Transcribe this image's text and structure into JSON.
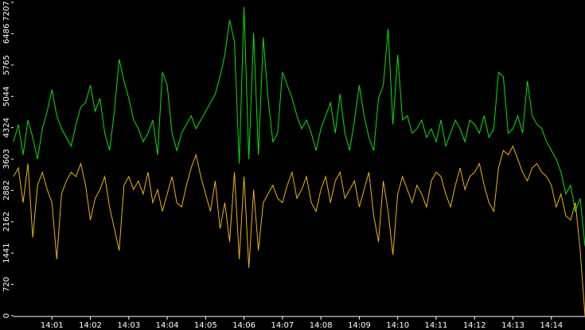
{
  "chart_data": {
    "type": "line",
    "x": [
      0,
      0.125,
      0.25,
      0.375,
      0.5,
      0.625,
      0.75,
      0.875,
      1,
      1.125,
      1.25,
      1.375,
      1.5,
      1.625,
      1.75,
      1.875,
      2,
      2.125,
      2.25,
      2.375,
      2.5,
      2.625,
      2.75,
      2.875,
      3,
      3.125,
      3.25,
      3.375,
      3.5,
      3.625,
      3.75,
      3.875,
      4,
      4.125,
      4.25,
      4.375,
      4.5,
      4.625,
      4.75,
      4.875,
      5,
      5.125,
      5.25,
      5.375,
      5.5,
      5.625,
      5.75,
      5.875,
      6,
      6.125,
      6.25,
      6.375,
      6.5,
      6.625,
      6.75,
      6.875,
      7,
      7.125,
      7.25,
      7.375,
      7.5,
      7.625,
      7.75,
      7.875,
      8,
      8.125,
      8.25,
      8.375,
      8.5,
      8.625,
      8.75,
      8.875,
      9,
      9.125,
      9.25,
      9.375,
      9.5,
      9.625,
      9.75,
      9.875,
      10,
      10.125,
      10.25,
      10.375,
      10.5,
      10.625,
      10.75,
      10.875,
      11,
      11.125,
      11.25,
      11.375,
      11.5,
      11.625,
      11.75,
      11.875,
      12,
      12.125,
      12.25,
      12.375,
      12.5,
      12.625,
      12.75,
      12.875,
      13,
      13.125,
      13.25,
      13.375,
      13.5,
      13.625,
      13.75,
      13.875,
      14,
      14.125,
      14.25,
      14.375,
      14.5,
      14.625,
      14.75,
      14.875
    ],
    "series": [
      {
        "color": "#00e600",
        "values": [
          4000,
          4400,
          3700,
          4500,
          4100,
          3600,
          4300,
          4700,
          5200,
          4600,
          4300,
          4100,
          3900,
          4400,
          4800,
          4900,
          5300,
          4700,
          5000,
          4200,
          3800,
          4700,
          5900,
          5400,
          5000,
          4500,
          4300,
          4000,
          4200,
          4500,
          3700,
          5600,
          5300,
          4200,
          3800,
          4200,
          4400,
          4600,
          4300,
          4500,
          4700,
          4900,
          5100,
          5500,
          6000,
          6800,
          6300,
          3500,
          7100,
          3600,
          6500,
          3700,
          6400,
          5000,
          4000,
          4200,
          5600,
          5300,
          5000,
          4600,
          4300,
          4500,
          4200,
          3800,
          4300,
          4600,
          4900,
          4200,
          5100,
          4200,
          3800,
          4500,
          5300,
          4600,
          4100,
          3800,
          5000,
          5300,
          6600,
          4400,
          6000,
          4500,
          4600,
          4200,
          4300,
          4500,
          4100,
          4300,
          4000,
          4500,
          3900,
          4200,
          4500,
          4300,
          4000,
          4500,
          4400,
          4200,
          4600,
          4100,
          4300,
          5600,
          5500,
          4200,
          4300,
          4600,
          4200,
          5400,
          4600,
          4400,
          4300,
          4000,
          3800,
          3600,
          3300,
          2800,
          3000,
          2400,
          2700,
          1600
        ]
      },
      {
        "color": "#f0b400",
        "values": [
          3200,
          3400,
          2600,
          3500,
          1800,
          3000,
          3300,
          2900,
          2600,
          1300,
          2800,
          3100,
          3300,
          3200,
          3500,
          3000,
          2200,
          2700,
          2900,
          3200,
          2500,
          2000,
          1500,
          3000,
          3200,
          2900,
          3100,
          2800,
          3300,
          2600,
          2900,
          2400,
          2800,
          3200,
          2600,
          2500,
          3000,
          3400,
          3700,
          3200,
          2800,
          2400,
          3100,
          2000,
          2600,
          1700,
          3300,
          1300,
          3200,
          1100,
          2900,
          1500,
          2600,
          2800,
          3000,
          2700,
          2600,
          3000,
          3300,
          2700,
          2900,
          3200,
          2600,
          2400,
          2900,
          3200,
          2600,
          3100,
          3300,
          2700,
          2900,
          3100,
          2500,
          2900,
          3300,
          2300,
          1700,
          3100,
          2400,
          1400,
          2800,
          3200,
          2900,
          2600,
          3000,
          2800,
          2500,
          3100,
          3300,
          3200,
          2800,
          2500,
          3000,
          3400,
          2900,
          3200,
          3300,
          3500,
          3000,
          2600,
          2400,
          3400,
          3800,
          3700,
          3900,
          3600,
          3300,
          3100,
          3400,
          3500,
          3300,
          3200,
          3000,
          2500,
          2800,
          2300,
          2200,
          2600,
          1500,
          0
        ]
      }
    ],
    "xlim": [
      0,
      14.875
    ],
    "xticks": [
      {
        "value": 1,
        "label": "14:01"
      },
      {
        "value": 2,
        "label": "14:02"
      },
      {
        "value": 3,
        "label": "14:03"
      },
      {
        "value": 4,
        "label": "14:04"
      },
      {
        "value": 5,
        "label": "14:05"
      },
      {
        "value": 6,
        "label": "14:06"
      },
      {
        "value": 7,
        "label": "14:07"
      },
      {
        "value": 8,
        "label": "14:08"
      },
      {
        "value": 9,
        "label": "14:09"
      },
      {
        "value": 10,
        "label": "14:10"
      },
      {
        "value": 11,
        "label": "14:11"
      },
      {
        "value": 12,
        "label": "14:12"
      },
      {
        "value": 13,
        "label": "14:13"
      },
      {
        "value": 14,
        "label": "14:14"
      }
    ],
    "ylim": [
      0,
      7207
    ],
    "yticks": [
      0,
      720,
      1441,
      2162,
      2882,
      3603,
      4324,
      5044,
      5765,
      6486,
      7207
    ]
  }
}
